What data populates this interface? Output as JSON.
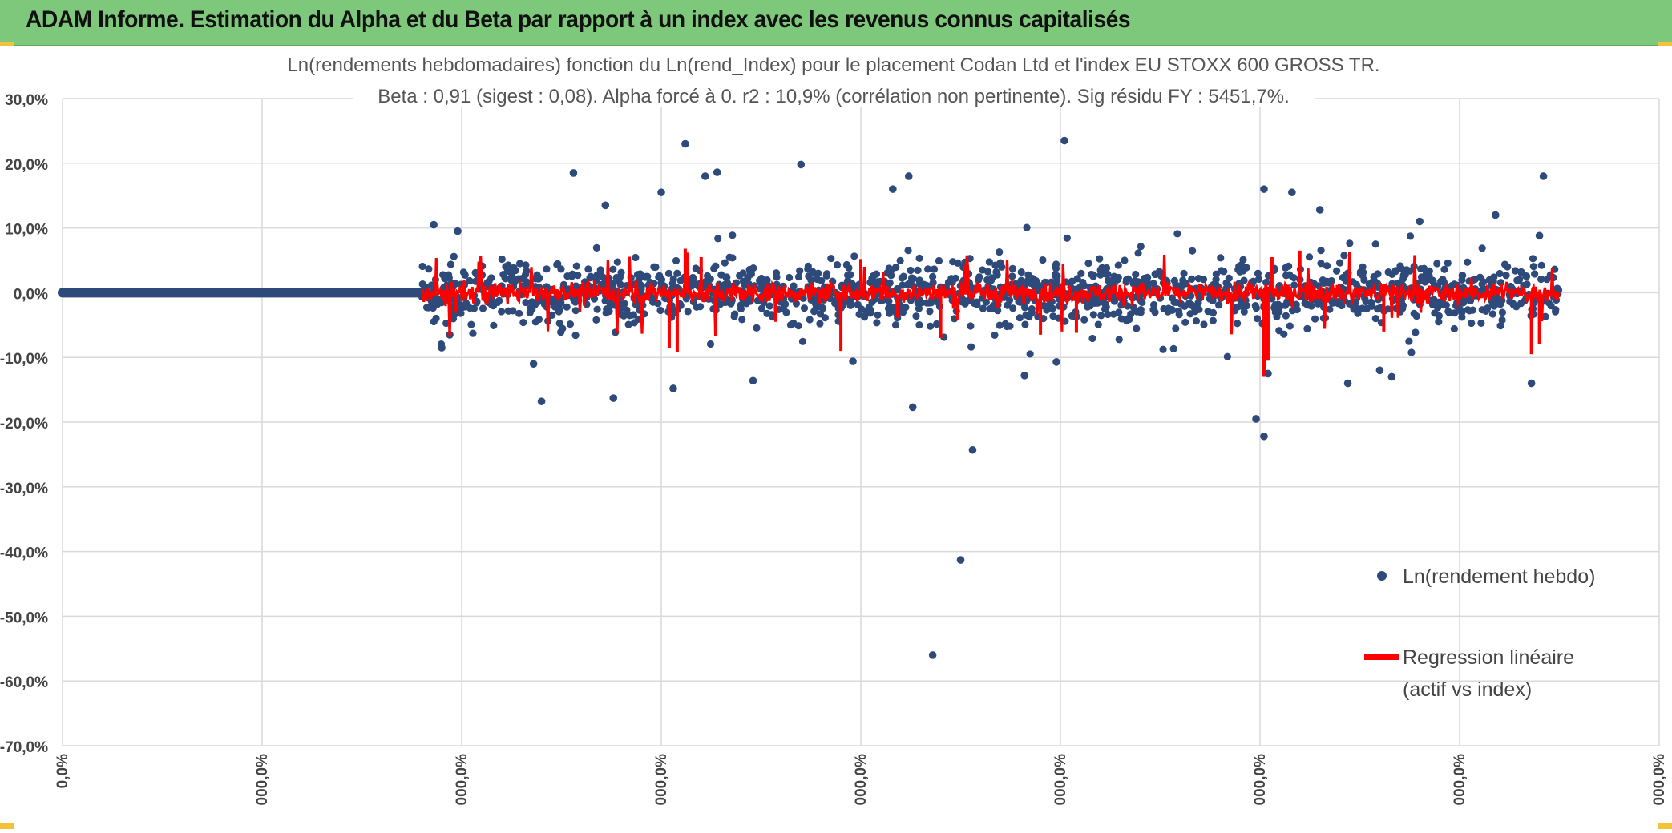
{
  "banner": {
    "title": "ADAM Informe. Estimation du Alpha et du Beta par rapport à un index avec les revenus connus capitalisés",
    "background": "#7dc87a"
  },
  "chart_data": {
    "type": "scatter",
    "title": "Ln(rendements hebdomadaires) fonction du Ln(rend_Index) pour le placement Codan Ltd et l'index EU STOXX 600 GROSS TR.",
    "subtitle": "Beta : 0,91 (sigest : 0,08). Alpha forcé à 0. r2 : 10,9% (corrélation non pertinente). Sig résidu FY : 5451,7%.",
    "xlabel": "",
    "ylabel": "",
    "ylim": [
      -70,
      30
    ],
    "xlim": [
      0,
      8
    ],
    "yticks": [
      "30,0%",
      "20,0%",
      "10,0%",
      "0,0%",
      "-10,0%",
      "-20,0%",
      "-30,0%",
      "-40,0%",
      "-50,0%",
      "-60,0%",
      "-70,0%"
    ],
    "ytick_values": [
      30,
      20,
      10,
      0,
      -10,
      -20,
      -30,
      -40,
      -50,
      -60,
      -70
    ],
    "xticks": [
      "0,0%",
      "000,0%",
      "000,0%",
      "000,0%",
      "000,0%",
      "000,0%",
      "000,0%",
      "000,0%",
      "000,0%"
    ],
    "xtick_values": [
      0,
      1,
      2,
      3,
      4,
      5,
      6,
      7,
      8
    ],
    "grid": true,
    "legend_position": "right",
    "colors": {
      "scatter": "#2e4a7a",
      "regression": "#ff0000",
      "grid": "#d9d9d9"
    },
    "series": [
      {
        "name": "Ln(rendement hebdo)",
        "kind": "scatter",
        "points_note": "flat zero line from x=0 to x=1.8, then dense cloud from x=1.8 to x=7.5",
        "zero_segment": [
          0,
          1.8
        ],
        "outliers": [
          [
            1.86,
            10.5
          ],
          [
            1.9,
            -8.5
          ],
          [
            1.94,
            -6.5
          ],
          [
            1.98,
            9.5
          ],
          [
            2.36,
            -11.0
          ],
          [
            2.4,
            -16.8
          ],
          [
            2.56,
            18.5
          ],
          [
            2.72,
            13.5
          ],
          [
            2.76,
            -16.3
          ],
          [
            3.0,
            15.5
          ],
          [
            3.06,
            -14.8
          ],
          [
            3.12,
            23.0
          ],
          [
            3.22,
            18.0
          ],
          [
            3.28,
            18.6
          ],
          [
            3.46,
            -13.6
          ],
          [
            3.7,
            19.8
          ],
          [
            3.96,
            -10.6
          ],
          [
            4.16,
            16.0
          ],
          [
            4.24,
            18.0
          ],
          [
            4.26,
            -17.7
          ],
          [
            4.36,
            -56.0
          ],
          [
            4.5,
            -41.3
          ],
          [
            4.56,
            -24.3
          ],
          [
            4.82,
            -12.8
          ],
          [
            4.98,
            -10.7
          ],
          [
            5.02,
            23.5
          ],
          [
            5.98,
            -19.5
          ],
          [
            6.02,
            -22.2
          ],
          [
            6.02,
            16.0
          ],
          [
            6.04,
            -12.5
          ],
          [
            6.16,
            15.5
          ],
          [
            6.3,
            12.8
          ],
          [
            6.44,
            -14.0
          ],
          [
            6.6,
            -12.0
          ],
          [
            6.66,
            -13.0
          ],
          [
            6.8,
            11.0
          ],
          [
            7.18,
            12.0
          ],
          [
            7.36,
            -14.0
          ],
          [
            7.42,
            18.0
          ],
          [
            7.4,
            8.8
          ]
        ]
      },
      {
        "name": "Regression linéaire (actif vs index)",
        "kind": "line",
        "note": "red fitted values oscillating near 0 between x=1.8 and x=7.5"
      }
    ]
  },
  "legend": {
    "item1": "Ln(rendement hebdo)",
    "item2_line1": "Regression linéaire",
    "item2_line2": "(actif vs index)"
  }
}
